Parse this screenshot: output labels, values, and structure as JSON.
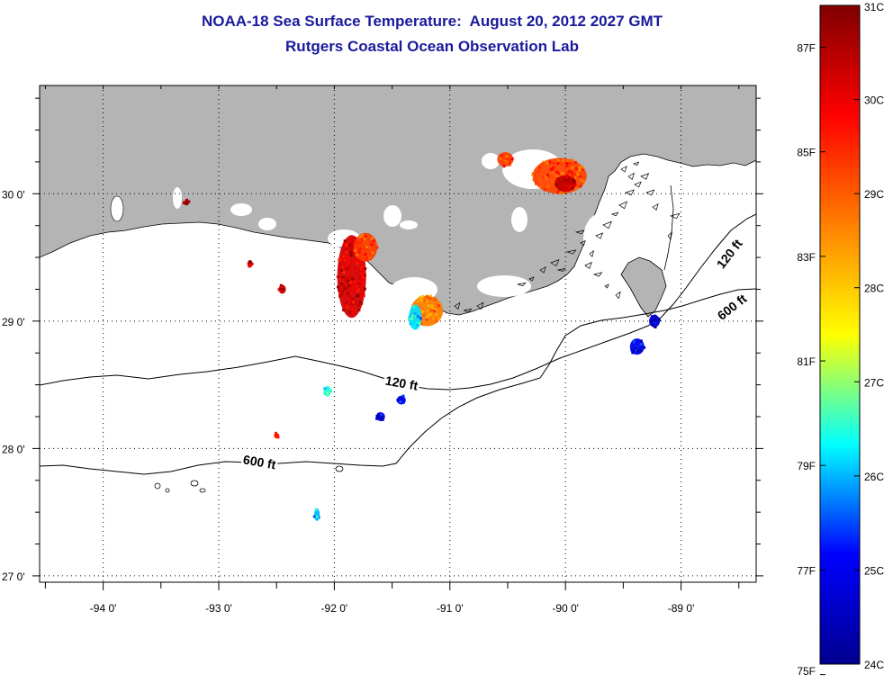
{
  "title": {
    "line1": "NOAA-18 Sea Surface Temperature:  August 20, 2012 2027 GMT",
    "line2": "Rutgers Coastal Ocean Observation Lab"
  },
  "map": {
    "lon_range": [
      -94.55,
      -88.35
    ],
    "lat_range": [
      26.95,
      30.85
    ],
    "lon_ticks": [
      {
        "value": -94,
        "label": "-94 0'"
      },
      {
        "value": -93,
        "label": "-93 0'"
      },
      {
        "value": -92,
        "label": "-92 0'"
      },
      {
        "value": -91,
        "label": "-91 0'"
      },
      {
        "value": -90,
        "label": "-90 0'"
      },
      {
        "value": -89,
        "label": "-89 0'"
      }
    ],
    "lat_ticks": [
      {
        "value": 30,
        "label": "30 0'"
      },
      {
        "value": 29,
        "label": "29 0'"
      },
      {
        "value": 28,
        "label": "28 0'"
      },
      {
        "value": 27,
        "label": "27 0'"
      }
    ],
    "grid": true,
    "land_color": "#b4b4b4",
    "water_color": "#ffffff",
    "contours": [
      {
        "name": "120 ft",
        "label": "120 ft"
      },
      {
        "name": "600 ft",
        "label": "600 ft"
      }
    ],
    "contour_labels": [
      {
        "text": "120 ft",
        "lon": -88.57,
        "lat": 29.52,
        "angle": -52
      },
      {
        "text": "600 ft",
        "lon": -88.55,
        "lat": 29.1,
        "angle": -38
      },
      {
        "text": "120 ft",
        "lon": -91.42,
        "lat": 28.5,
        "angle": 10
      },
      {
        "text": "600 ft",
        "lon": -92.65,
        "lat": 27.88,
        "angle": 10
      }
    ]
  },
  "colorbar": {
    "c_min": 24,
    "c_max": 31,
    "colors": [
      "#00008f",
      "#0000ff",
      "#00ffff",
      "#ffff00",
      "#ff8000",
      "#ff0000",
      "#800000"
    ],
    "celsius_ticks": [
      {
        "value": 31,
        "label": "31C"
      },
      {
        "value": 30,
        "label": "30C"
      },
      {
        "value": 29,
        "label": "29C"
      },
      {
        "value": 28,
        "label": "28C"
      },
      {
        "value": 27,
        "label": "27C"
      },
      {
        "value": 26,
        "label": "26C"
      },
      {
        "value": 25,
        "label": "25C"
      },
      {
        "value": 24,
        "label": "24C"
      }
    ],
    "fahrenheit_ticks": [
      {
        "value": 87,
        "label": "87F"
      },
      {
        "value": 85,
        "label": "85F"
      },
      {
        "value": 83,
        "label": "83F"
      },
      {
        "value": 81,
        "label": "81F"
      },
      {
        "value": 79,
        "label": "79F"
      },
      {
        "value": 77,
        "label": "77F"
      },
      {
        "value": 75,
        "label": "75F"
      }
    ]
  },
  "sst_patches": [
    {
      "name": "atchafalaya-bay-patch",
      "lon": -91.85,
      "lat": 29.35,
      "rx": 16,
      "ry": 46,
      "temp": 30.2
    },
    {
      "name": "atchafalaya-inner-patch",
      "lon": -91.73,
      "lat": 29.58,
      "rx": 13,
      "ry": 16,
      "temp": 29.3
    },
    {
      "name": "terrebonne-bay-patch",
      "lon": -91.2,
      "lat": 29.08,
      "rx": 18,
      "ry": 17,
      "temp": 28.7
    },
    {
      "name": "terrebonne-edge-patch",
      "lon": -91.3,
      "lat": 29.03,
      "rx": 7,
      "ry": 14,
      "temp": 26.2
    },
    {
      "name": "lake-pontchartrain-patch",
      "lon": -90.05,
      "lat": 30.14,
      "rx": 30,
      "ry": 20,
      "temp": 29.2
    },
    {
      "name": "lake-pontchartrain-hot-core",
      "lon": -90.0,
      "lat": 30.08,
      "rx": 12,
      "ry": 9,
      "temp": 30.4
    },
    {
      "name": "lake-maurepas-patch",
      "lon": -90.52,
      "lat": 30.27,
      "rx": 9,
      "ry": 8,
      "temp": 29.3
    },
    {
      "name": "mississippi-delta-patch",
      "lon": -89.23,
      "lat": 29.0,
      "rx": 6,
      "ry": 7,
      "temp": 24.8
    },
    {
      "name": "delta-offshore-patch",
      "lon": -89.38,
      "lat": 28.8,
      "rx": 8,
      "ry": 9,
      "temp": 25.0
    },
    {
      "name": "shelf-patch-a",
      "lon": -91.42,
      "lat": 28.38,
      "rx": 5,
      "ry": 5,
      "temp": 25.0
    },
    {
      "name": "shelf-patch-b",
      "lon": -91.6,
      "lat": 28.25,
      "rx": 5,
      "ry": 5,
      "temp": 24.8
    },
    {
      "name": "shelf-patch-c",
      "lon": -92.06,
      "lat": 28.45,
      "rx": 4,
      "ry": 6,
      "temp": 26.5
    },
    {
      "name": "shelf-patch-d",
      "lon": -92.15,
      "lat": 27.48,
      "rx": 3,
      "ry": 7,
      "temp": 26.0
    },
    {
      "name": "shelf-patch-e",
      "lon": -92.5,
      "lat": 28.1,
      "rx": 3,
      "ry": 3,
      "temp": 29.5
    },
    {
      "name": "nearshore-patch-west",
      "lon": -92.45,
      "lat": 29.25,
      "rx": 4,
      "ry": 5,
      "temp": 30.4
    },
    {
      "name": "nearshore-patch-far-west",
      "lon": -92.73,
      "lat": 29.45,
      "rx": 3,
      "ry": 4,
      "temp": 30.5
    },
    {
      "name": "lake-sabine-speck",
      "lon": -93.28,
      "lat": 29.93,
      "rx": 3,
      "ry": 3,
      "temp": 30.8
    }
  ]
}
